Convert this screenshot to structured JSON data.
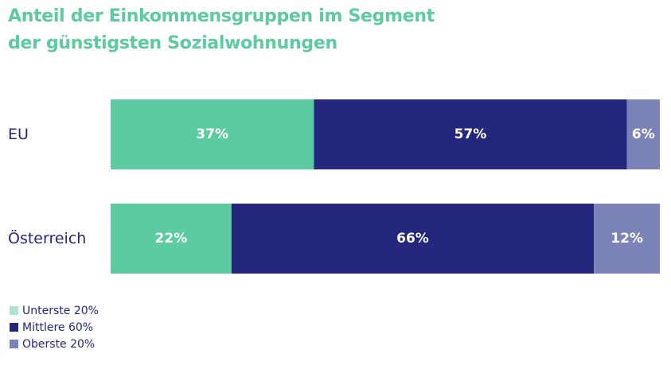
{
  "chart_data": {
    "type": "bar",
    "orientation": "horizontal",
    "stacked": true,
    "title_lines": [
      "Anteil der Einkommensgruppen im Segment",
      "der günstigsten Sozialwohnungen"
    ],
    "xlabel": "",
    "ylabel": "",
    "xlim": [
      0,
      100
    ],
    "grid": false,
    "legend_position": "bottom-left",
    "categories": [
      "EU",
      "Österreich"
    ],
    "series": [
      {
        "name": "Unterste 20%",
        "color": "#5ccb9f",
        "values": [
          37,
          22
        ],
        "labels": [
          "37%",
          "22%"
        ]
      },
      {
        "name": "Mittlere 60%",
        "color": "#25277c",
        "values": [
          57,
          66
        ],
        "labels": [
          "57%",
          "66%"
        ]
      },
      {
        "name": "Oberste 20%",
        "color": "#7b82b8",
        "values": [
          6,
          12
        ],
        "labels": [
          "6%",
          "12%"
        ]
      }
    ]
  },
  "legend_swatch_colors": [
    "#ace5cf",
    "#25277c",
    "#7b82b8"
  ]
}
